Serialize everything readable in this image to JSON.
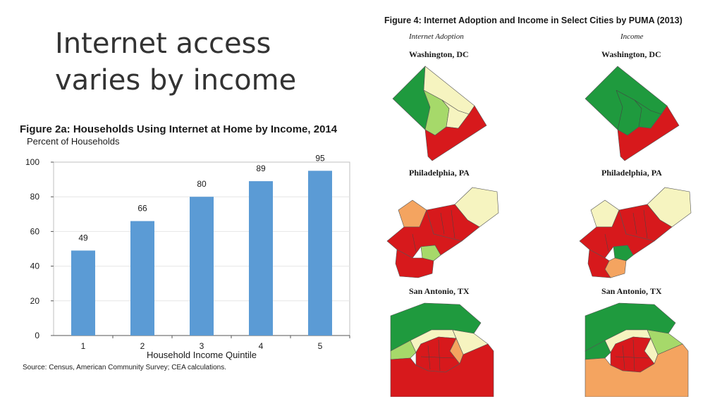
{
  "slide": {
    "title": "Internet access varies by income"
  },
  "chart_data": {
    "type": "bar",
    "title": "Figure 2a: Households Using Internet at Home by Income, 2014",
    "ylabel": "Percent of Households",
    "xlabel": "Household Income Quintile",
    "categories": [
      "1",
      "2",
      "3",
      "4",
      "5"
    ],
    "values": [
      49,
      66,
      80,
      89,
      95
    ],
    "ylim": [
      0,
      100
    ],
    "yticks": [
      0,
      20,
      40,
      60,
      80,
      100
    ],
    "grid": true,
    "bar_color": "#5b9bd5",
    "source": "Source: Census, American Community Survey; CEA calculations."
  },
  "figure4": {
    "title": "Figure 4: Internet Adoption and Income in Select Cities by PUMA (2013)",
    "columns": [
      "Internet Adoption",
      "Income"
    ],
    "cities": [
      "Washington, DC",
      "Philadelphia, PA",
      "San Antonio, TX"
    ],
    "colors": {
      "green": "#1f9a3e",
      "light_green": "#a6d96a",
      "pale_yellow": "#f6f4c0",
      "orange": "#f4a460",
      "red": "#d7191c"
    }
  }
}
